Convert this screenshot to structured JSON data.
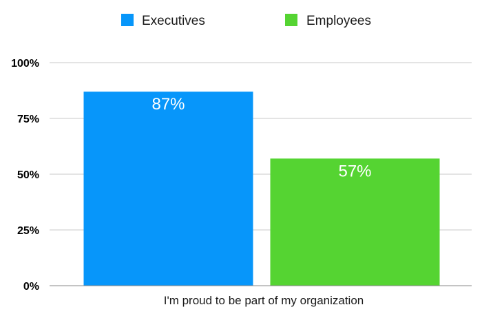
{
  "chart_data": {
    "type": "bar",
    "categories": [
      "I'm proud to be part of my organization"
    ],
    "series": [
      {
        "name": "Executives",
        "values": [
          87
        ],
        "color": "#0796fa",
        "data_labels": [
          "87%"
        ]
      },
      {
        "name": "Employees",
        "values": [
          57
        ],
        "color": "#55d432",
        "data_labels": [
          "57%"
        ]
      }
    ],
    "ylim": [
      0,
      100
    ],
    "yticks": [
      0,
      25,
      50,
      75,
      100
    ],
    "ytick_labels": [
      "0%",
      "25%",
      "50%",
      "75%",
      "100%"
    ],
    "grid": true,
    "legend_position": "top",
    "gridline_color": "#c8c8c8",
    "axis_color": "#888888"
  }
}
